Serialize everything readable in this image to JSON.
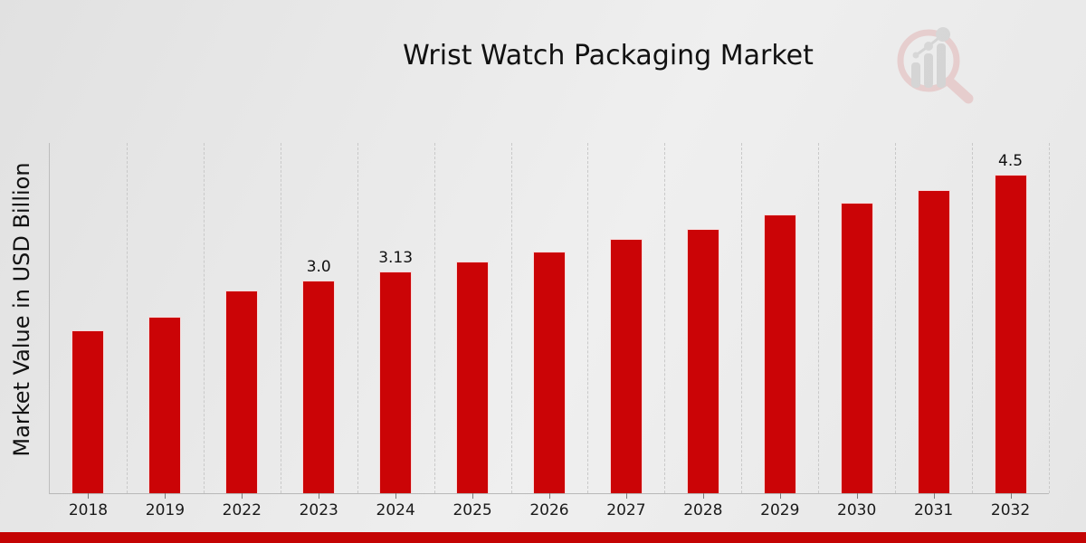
{
  "chart_data": {
    "type": "bar",
    "title": "Wrist Watch Packaging Market",
    "xlabel": "",
    "ylabel": "Market Value in USD Billion",
    "categories": [
      "2018",
      "2019",
      "2022",
      "2023",
      "2024",
      "2025",
      "2026",
      "2027",
      "2028",
      "2029",
      "2030",
      "2031",
      "2032"
    ],
    "values": [
      2.3,
      2.5,
      2.86,
      3.0,
      3.13,
      3.28,
      3.42,
      3.59,
      3.74,
      3.94,
      4.1,
      4.29,
      4.5
    ],
    "bar_value_labels": {
      "2023": "3.0",
      "2024": "3.13",
      "2032": "4.5"
    },
    "ylim": [
      0,
      4.95
    ],
    "grid": "vertical-dashed",
    "legend": "none",
    "bar_color": "#cb0406",
    "accent_strip_color": "#c40404",
    "background_color": "#e9e9e9",
    "gridline_color": "#c9c9c9",
    "text_color": "#111111"
  },
  "branding": {
    "logo_icon": "magnifier-bar-chart-logo"
  }
}
